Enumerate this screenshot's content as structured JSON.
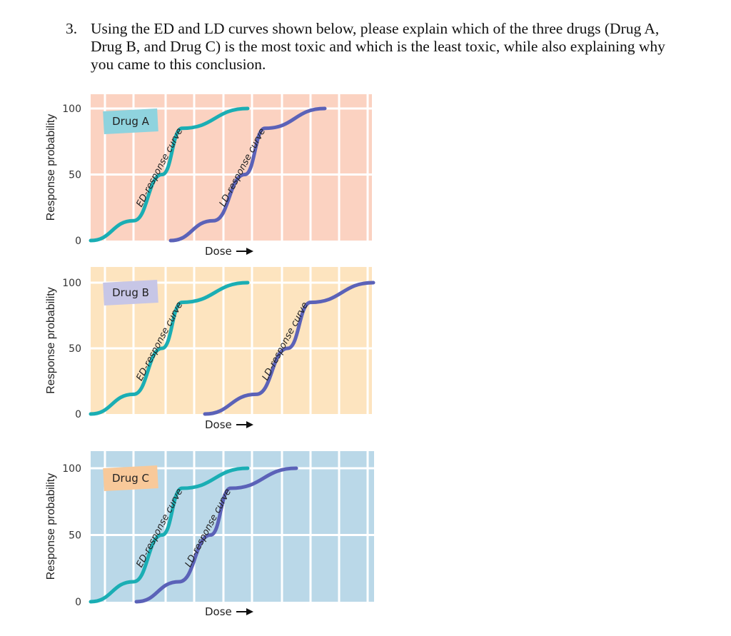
{
  "question": {
    "number": "3.",
    "text": "Using the ED and LD curves shown below, please explain which of the three drugs (Drug A, Drug B, and Drug C) is the most toxic and which is the least toxic, while also explaining why you came to this conclusion."
  },
  "colors": {
    "ed_curve": "#1aaeb4",
    "ld_curve": "#5b62b8",
    "panel_a_bg": "#fbd2c1",
    "panel_b_bg": "#fde4bf",
    "panel_c_bg": "#bad8e8"
  },
  "chart_data": [
    {
      "type": "line",
      "title": "Drug A",
      "ylabel": "Response probability",
      "xlabel": "Dose",
      "y_ticks": [
        "100",
        "50",
        "0"
      ],
      "ylim": [
        0,
        100
      ],
      "grid": true,
      "series": [
        {
          "name": "ED-response curve",
          "x": [
            0,
            1.5,
            2.5,
            3.2,
            5.5
          ],
          "y": [
            0,
            15,
            50,
            85,
            100
          ]
        },
        {
          "name": "LD-response curve",
          "x": [
            2.8,
            4.3,
            5.4,
            6.1,
            8.2
          ],
          "y": [
            0,
            15,
            50,
            85,
            100
          ]
        }
      ]
    },
    {
      "type": "line",
      "title": "Drug B",
      "ylabel": "Response probability",
      "xlabel": "Dose",
      "y_ticks": [
        "100",
        "50",
        "0"
      ],
      "ylim": [
        0,
        100
      ],
      "grid": true,
      "series": [
        {
          "name": "ED-response curve",
          "x": [
            0,
            1.5,
            2.5,
            3.2,
            5.5
          ],
          "y": [
            0,
            15,
            50,
            85,
            100
          ]
        },
        {
          "name": "LD-response curve",
          "x": [
            4.0,
            5.8,
            6.9,
            7.7,
            9.9
          ],
          "y": [
            0,
            15,
            50,
            85,
            100
          ]
        }
      ]
    },
    {
      "type": "line",
      "title": "Drug C",
      "ylabel": "Response probability",
      "xlabel": "Dose",
      "y_ticks": [
        "100",
        "50",
        "0"
      ],
      "ylim": [
        0,
        100
      ],
      "grid": true,
      "series": [
        {
          "name": "ED-response curve",
          "x": [
            0,
            1.5,
            2.5,
            3.2,
            5.5
          ],
          "y": [
            0,
            15,
            50,
            85,
            100
          ]
        },
        {
          "name": "LD-response curve",
          "x": [
            1.6,
            3.1,
            4.2,
            4.9,
            7.2
          ],
          "y": [
            0,
            15,
            50,
            85,
            100
          ]
        }
      ]
    }
  ]
}
